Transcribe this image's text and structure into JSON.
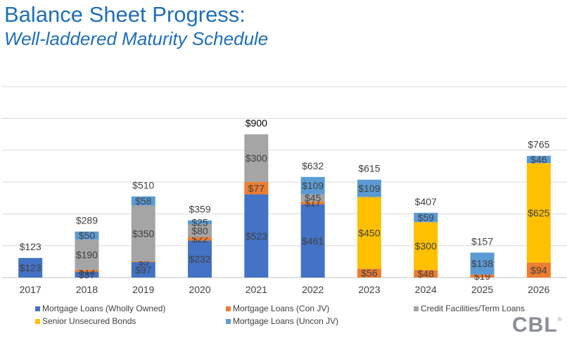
{
  "title": "Balance Sheet Progress:",
  "subtitle": "Well-laddered Maturity Schedule",
  "logo": "CBL",
  "logo_mark": "®",
  "colors": {
    "mortgage_wholly": "#4472c4",
    "mortgage_con_jv": "#ed7d31",
    "credit_facilities": "#a5a5a5",
    "senior_bonds": "#ffc000",
    "mortgage_uncon_jv": "#5b9bd5"
  },
  "chart_data": {
    "type": "bar",
    "stacked": true,
    "categories": [
      "2017",
      "2018",
      "2019",
      "2020",
      "2021",
      "2022",
      "2023",
      "2024",
      "2025",
      "2026"
    ],
    "series": [
      {
        "name": "Mortgage Loans (Wholly Owned)",
        "color": "#4472c4",
        "values": [
          123,
          37,
          97,
          232,
          523,
          461,
          0,
          0,
          0,
          0
        ],
        "labels": [
          "$123",
          "$37",
          "$97",
          "$232",
          "$523",
          "$461",
          "",
          "",
          "",
          ""
        ]
      },
      {
        "name": "Mortgage Loans (Con JV)",
        "color": "#ed7d31",
        "values": [
          0,
          12,
          5,
          22,
          77,
          17,
          56,
          48,
          19,
          94
        ],
        "labels": [
          "",
          "$12",
          "$5",
          "$22",
          "$77",
          "$17",
          "$56",
          "$48",
          "$19",
          "$94"
        ]
      },
      {
        "name": "Credit Facilities/Term Loans",
        "color": "#a5a5a5",
        "values": [
          0,
          190,
          350,
          80,
          300,
          45,
          0,
          0,
          0,
          0
        ],
        "labels": [
          "",
          "$190",
          "$350",
          "$80",
          "$300",
          "$45",
          "",
          "",
          "",
          ""
        ]
      },
      {
        "name": "Senior Unsecured Bonds",
        "color": "#ffc000",
        "values": [
          0,
          0,
          0,
          0,
          0,
          0,
          450,
          300,
          0,
          625
        ],
        "labels": [
          "",
          "",
          "",
          "",
          "",
          "",
          "$450",
          "$300",
          "",
          "$625"
        ]
      },
      {
        "name": "Mortgage Loans (Uncon JV)",
        "color": "#5b9bd5",
        "values": [
          0,
          50,
          58,
          25,
          0,
          109,
          109,
          59,
          138,
          46
        ],
        "labels": [
          "",
          "$50",
          "$58",
          "$25",
          "",
          "$109",
          "$109",
          "$59",
          "$138",
          "$46"
        ]
      }
    ],
    "totals": [
      "$123",
      "$289",
      "$510",
      "$359",
      "$900",
      "$632",
      "$615",
      "$407",
      "$157",
      "$765"
    ],
    "ylim": [
      0,
      1200
    ],
    "grid": true,
    "legend": "bottom"
  }
}
